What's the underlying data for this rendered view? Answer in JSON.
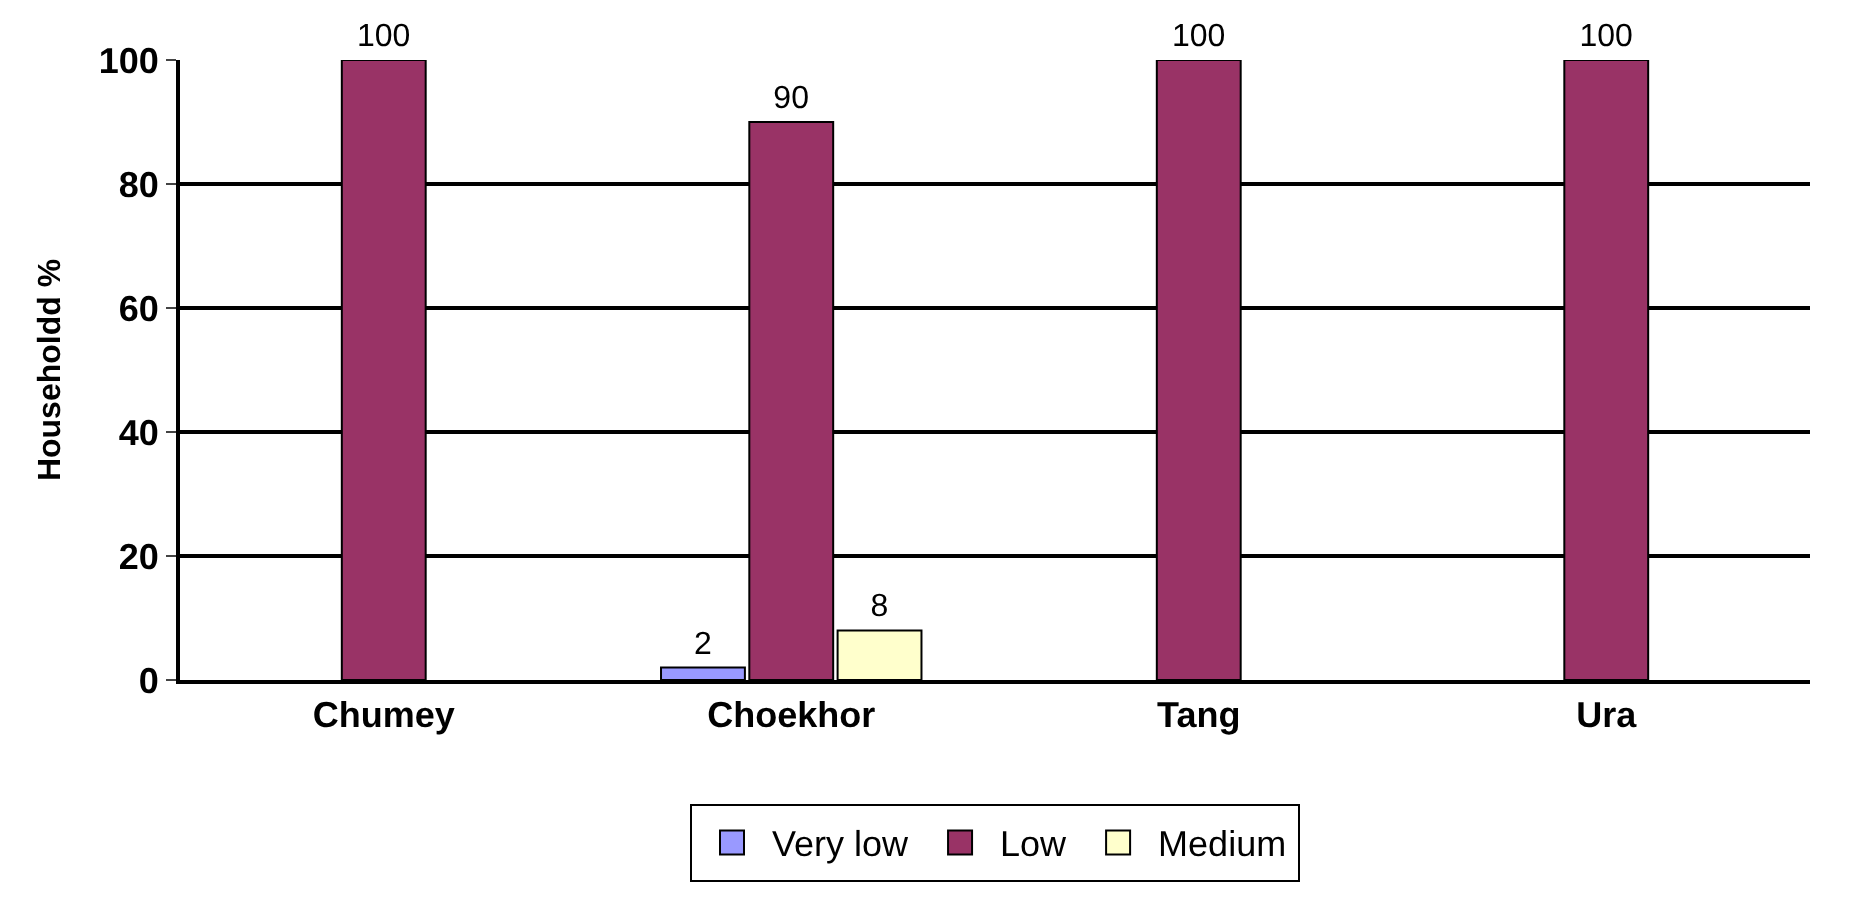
{
  "chart_data": {
    "type": "bar",
    "ylabel": "Householdd %",
    "categories": [
      "Chumey",
      "Choekhor",
      "Tang",
      "Ura"
    ],
    "series": [
      {
        "name": "Very low",
        "color": "#9999ff",
        "values": [
          null,
          2,
          null,
          null
        ]
      },
      {
        "name": "Low",
        "color": "#993366",
        "values": [
          100,
          90,
          100,
          100
        ]
      },
      {
        "name": "Medium",
        "color": "#ffffcc",
        "values": [
          null,
          8,
          null,
          null
        ]
      }
    ],
    "data_labels": true,
    "ylim": [
      0,
      100
    ],
    "yticks": [
      0,
      20,
      40,
      60,
      80,
      100
    ],
    "grid": "y",
    "legend": "bottom"
  }
}
